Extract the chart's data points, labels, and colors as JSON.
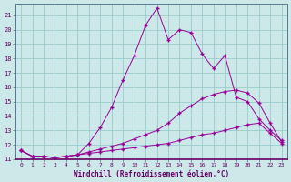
{
  "xlabel": "Windchill (Refroidissement éolien,°C)",
  "bg_color": "#cce8e8",
  "line_color": "#990099",
  "grid_color": "#99cccc",
  "xlim": [
    -0.5,
    23.5
  ],
  "ylim": [
    11,
    21.8
  ],
  "xticks": [
    0,
    1,
    2,
    3,
    4,
    5,
    6,
    7,
    8,
    9,
    10,
    11,
    12,
    13,
    14,
    15,
    16,
    17,
    18,
    19,
    20,
    21,
    22,
    23
  ],
  "yticks": [
    11,
    12,
    13,
    14,
    15,
    16,
    17,
    18,
    19,
    20,
    21
  ],
  "line1_x": [
    0,
    1,
    2,
    3,
    4,
    5,
    6,
    7,
    8,
    9,
    10,
    11,
    12,
    13,
    14,
    15,
    16,
    17,
    18,
    19,
    20,
    21,
    22,
    23
  ],
  "line1_y": [
    11.6,
    11.2,
    11.2,
    11.1,
    11.2,
    11.3,
    12.1,
    13.2,
    14.6,
    16.5,
    18.2,
    20.3,
    21.5,
    19.3,
    20.0,
    19.8,
    18.3,
    17.3,
    18.2,
    15.3,
    15.0,
    13.8,
    13.0,
    12.3
  ],
  "line2_x": [
    0,
    1,
    2,
    3,
    4,
    5,
    6,
    7,
    8,
    9,
    10,
    11,
    12,
    13,
    14,
    15,
    16,
    17,
    18,
    19,
    20,
    21,
    22,
    23
  ],
  "line2_y": [
    11.6,
    11.2,
    11.2,
    11.1,
    11.2,
    11.3,
    11.5,
    11.7,
    11.9,
    12.1,
    12.4,
    12.7,
    13.0,
    13.5,
    14.2,
    14.7,
    15.2,
    15.5,
    15.7,
    15.8,
    15.6,
    14.9,
    13.5,
    12.2
  ],
  "line3_x": [
    0,
    1,
    2,
    3,
    4,
    5,
    6,
    7,
    8,
    9,
    10,
    11,
    12,
    13,
    14,
    15,
    16,
    17,
    18,
    19,
    20,
    21,
    22,
    23
  ],
  "line3_y": [
    11.6,
    11.2,
    11.2,
    11.1,
    11.2,
    11.3,
    11.4,
    11.5,
    11.6,
    11.7,
    11.8,
    11.9,
    12.0,
    12.1,
    12.3,
    12.5,
    12.7,
    12.8,
    13.0,
    13.2,
    13.4,
    13.5,
    12.8,
    12.1
  ]
}
